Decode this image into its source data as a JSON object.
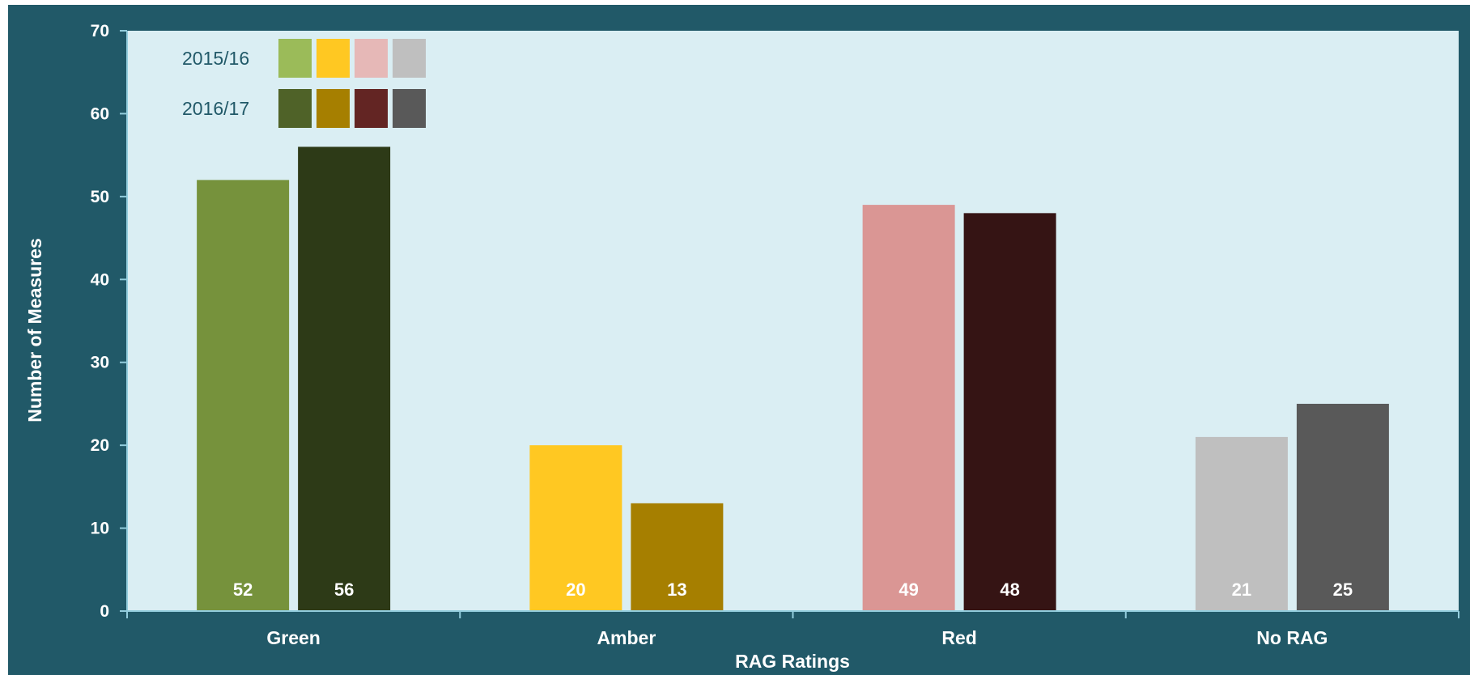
{
  "chart_data": {
    "type": "bar",
    "title": "",
    "xlabel": "RAG Ratings",
    "ylabel": "Number of Measures",
    "ylim": [
      0,
      70
    ],
    "yticks": [
      0,
      10,
      20,
      30,
      40,
      50,
      60,
      70
    ],
    "categories": [
      "Green",
      "Amber",
      "Red",
      "No RAG"
    ],
    "series": [
      {
        "name": "2015/16",
        "values": [
          52,
          20,
          49,
          21
        ],
        "colors": [
          "#76923c",
          "#ffc822",
          "#da9694",
          "#bfbfbf"
        ],
        "legend_colors": [
          "#9bbb59",
          "#ffc822",
          "#e6b8b7",
          "#bfbfbf"
        ]
      },
      {
        "name": "2016/17",
        "values": [
          56,
          13,
          48,
          25
        ],
        "colors": [
          "#2d3a17",
          "#a67f00",
          "#351414",
          "#595959"
        ],
        "legend_colors": [
          "#4f6228",
          "#a67f00",
          "#632523",
          "#595959"
        ]
      }
    ],
    "data_labels": "inside-base",
    "legend_position": "top-left",
    "grid": false,
    "colors": {
      "frame_background": "#215968",
      "plot_background": "#daeef3",
      "axis_line": "#93cddd",
      "text": "#ffffff",
      "legend_text": "#215968"
    }
  }
}
